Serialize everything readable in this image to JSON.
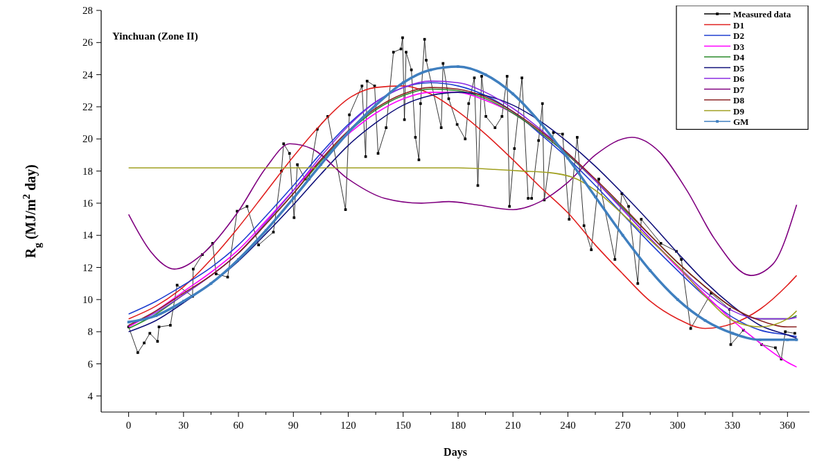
{
  "chart_data": {
    "type": "line",
    "title": "Yinchuan (Zone II)",
    "xlabel": "Days",
    "ylabel": "R$_{g}$ (MJ/m$^{2}$ day)",
    "xlim": [
      -15,
      372
    ],
    "ylim": [
      3,
      28
    ],
    "xticks": [
      0,
      {
        "value": 15,
        "label": null
      },
      30,
      {
        "value": 45,
        "label": null
      },
      60,
      {
        "value": 75,
        "label": null
      },
      90,
      {
        "value": 105,
        "label": null
      },
      120,
      {
        "value": 135,
        "label": null
      },
      150,
      {
        "value": 165,
        "label": null
      },
      180,
      {
        "value": 195,
        "label": null
      },
      210,
      {
        "value": 225,
        "label": null
      },
      240,
      {
        "value": 255,
        "label": null
      },
      270,
      {
        "value": 285,
        "label": null
      },
      300,
      {
        "value": 315,
        "label": null
      },
      330,
      {
        "value": 345,
        "label": null
      },
      360
    ],
    "yticks": [
      4,
      6,
      8,
      10,
      12,
      14,
      16,
      18,
      20,
      22,
      24,
      26,
      28
    ],
    "legend": "top right",
    "line_style": "solid",
    "series": [
      {
        "name": "Measured data",
        "color": "#000000",
        "marker": "square",
        "x": [
          0,
          5,
          8.5,
          11.6,
          15.8,
          16.6,
          22.8,
          26.5,
          34.9,
          35.3,
          40.3,
          45.9,
          47.8,
          54.1,
          59.3,
          64.7,
          71,
          79.1,
          83.5,
          84.7,
          87.9,
          90.4,
          92.2,
          96.4,
          98.5,
          103.1,
          108.8,
          118.5,
          120.6,
          127.5,
          129.5,
          130.3,
          134.4,
          136.3,
          140.7,
          144.7,
          148.8,
          149.7,
          150.7,
          151.6,
          154.5,
          156.7,
          158.6,
          159.5,
          161.7,
          162.6,
          170.8,
          171.8,
          174.9,
          179.5,
          183.9,
          185.8,
          188.9,
          190.8,
          192.9,
          195.2,
          200.2,
          204,
          206.8,
          208.1,
          210.8,
          214.9,
          218.3,
          220.2,
          224,
          226.1,
          227.1,
          232.1,
          237.1,
          240.7,
          245.1,
          248.8,
          252.8,
          256.9,
          265.7,
          269.5,
          273.2,
          278.2,
          280.1,
          290.8,
          299.3,
          302,
          307.1,
          318.3,
          328.3,
          329,
          335.9,
          345.9,
          353.4,
          356.6,
          358.8,
          364
        ],
        "values": [
          8.3,
          6.7,
          7.3,
          7.9,
          7.4,
          8.3,
          8.4,
          10.9,
          10.2,
          11.9,
          12.8,
          13.5,
          11.6,
          11.4,
          15.5,
          15.8,
          13.4,
          14.2,
          18.0,
          19.7,
          19.1,
          15.1,
          18.4,
          17.5,
          17.5,
          20.6,
          21.4,
          15.6,
          21.5,
          23.3,
          18.9,
          23.6,
          23.3,
          19.1,
          20.7,
          25.4,
          25.6,
          26.3,
          21.2,
          25.4,
          24.3,
          20.1,
          18.7,
          22.2,
          26.2,
          24.9,
          20.7,
          24.7,
          22.5,
          20.9,
          20.0,
          22.2,
          23.8,
          17.1,
          23.9,
          21.4,
          20.7,
          21.4,
          23.9,
          15.8,
          19.4,
          23.8,
          16.3,
          16.3,
          19.9,
          22.2,
          16.2,
          20.4,
          20.3,
          15.0,
          20.1,
          14.6,
          13.1,
          17.5,
          12.5,
          16.6,
          15.8,
          11.0,
          15.0,
          13.5,
          13.0,
          12.5,
          8.2,
          10.4,
          9.4,
          7.2,
          8.1,
          7.2,
          7.0,
          6.3,
          8.0,
          7.9
        ]
      },
      {
        "name": "D1",
        "color": "#e0201f",
        "x": [
          0,
          15,
          30,
          45,
          60,
          75,
          90,
          105,
          120,
          135,
          150,
          165,
          180,
          195,
          210,
          225,
          240,
          255,
          270,
          285,
          300,
          315,
          330,
          345,
          360,
          365
        ],
        "values": [
          8.8,
          9.6,
          10.8,
          12.5,
          14.5,
          16.7,
          18.9,
          20.9,
          22.5,
          23.2,
          23.3,
          22.8,
          21.7,
          20.3,
          18.7,
          17.0,
          15.4,
          13.4,
          11.6,
          9.9,
          8.8,
          8.2,
          8.5,
          9.4,
          10.9,
          11.5
        ]
      },
      {
        "name": "D2",
        "color": "#1f3fd0",
        "x": [
          0,
          15,
          30,
          45,
          60,
          75,
          90,
          105,
          120,
          135,
          150,
          165,
          180,
          195,
          210,
          225,
          240,
          255,
          270,
          285,
          300,
          315,
          330,
          345,
          360,
          365
        ],
        "values": [
          9.1,
          9.9,
          10.9,
          12.0,
          13.4,
          15.2,
          17.1,
          19.1,
          20.9,
          22.3,
          23.2,
          23.5,
          23.3,
          22.7,
          21.7,
          20.3,
          18.8,
          17.1,
          15.3,
          13.5,
          11.8,
          10.2,
          8.9,
          8.1,
          7.8,
          7.7
        ]
      },
      {
        "name": "D3",
        "color": "#ff00ff",
        "x": [
          0,
          15,
          30,
          45,
          60,
          75,
          90,
          105,
          120,
          135,
          150,
          165,
          180,
          195,
          210,
          225,
          240,
          255,
          270,
          285,
          300,
          315,
          330,
          345,
          360,
          365
        ],
        "values": [
          8.3,
          9.3,
          10.5,
          11.7,
          13.1,
          14.9,
          16.8,
          18.7,
          20.3,
          21.6,
          22.5,
          22.9,
          22.9,
          22.4,
          21.6,
          20.4,
          19.0,
          17.4,
          15.6,
          13.8,
          12.0,
          10.3,
          8.7,
          7.3,
          6.1,
          5.8
        ]
      },
      {
        "name": "D4",
        "color": "#2a8a2a",
        "x": [
          0,
          15,
          30,
          45,
          60,
          75,
          90,
          105,
          120,
          135,
          150,
          165,
          180,
          195,
          210,
          225,
          240,
          255,
          270,
          285,
          300,
          315,
          330,
          345,
          360,
          365
        ],
        "values": [
          8.2,
          9.1,
          10.3,
          11.5,
          12.9,
          14.7,
          16.6,
          18.6,
          20.4,
          21.8,
          22.7,
          23.1,
          23.0,
          22.5,
          21.6,
          20.4,
          19.0,
          17.4,
          15.7,
          14.0,
          12.3,
          10.8,
          9.5,
          8.8,
          8.8,
          9.0
        ]
      },
      {
        "name": "D5",
        "color": "#10107a",
        "x": [
          0,
          15,
          30,
          45,
          60,
          75,
          90,
          105,
          120,
          135,
          150,
          165,
          180,
          195,
          210,
          225,
          240,
          255,
          270,
          285,
          300,
          315,
          330,
          345,
          360,
          365
        ],
        "values": [
          8.0,
          8.7,
          9.8,
          11.0,
          12.4,
          14.1,
          15.9,
          17.8,
          19.6,
          21.0,
          22.1,
          22.7,
          22.9,
          22.7,
          22.1,
          21.1,
          19.8,
          18.3,
          16.6,
          14.8,
          12.9,
          11.1,
          9.6,
          8.4,
          7.8,
          7.6
        ]
      },
      {
        "name": "D6",
        "color": "#8a2be2",
        "x": [
          0,
          15,
          30,
          45,
          60,
          75,
          90,
          105,
          120,
          135,
          150,
          165,
          180,
          195,
          210,
          225,
          240,
          255,
          270,
          285,
          300,
          315,
          330,
          345,
          360,
          365
        ],
        "values": [
          8.4,
          9.2,
          10.3,
          11.5,
          12.9,
          14.8,
          16.8,
          18.9,
          20.8,
          22.3,
          23.2,
          23.6,
          23.5,
          22.9,
          21.9,
          20.6,
          19.1,
          17.4,
          15.6,
          13.8,
          12.1,
          10.5,
          9.3,
          8.8,
          8.8,
          8.9
        ]
      },
      {
        "name": "D7",
        "color": "#800080",
        "x": [
          0,
          12,
          25,
          40,
          60,
          75,
          88,
          100,
          120,
          140,
          160,
          175,
          190,
          210,
          225,
          240,
          255,
          275,
          290,
          305,
          320,
          340,
          352,
          365
        ],
        "values": [
          15.3,
          13.0,
          11.9,
          12.8,
          15.5,
          18.2,
          19.7,
          19.4,
          17.5,
          16.3,
          16.0,
          16.1,
          15.9,
          15.6,
          16.1,
          17.3,
          19.0,
          20.1,
          19.2,
          16.8,
          13.8,
          11.5,
          12.2,
          15.9
        ]
      },
      {
        "name": "D8",
        "color": "#8b2323",
        "x": [
          0,
          15,
          30,
          45,
          60,
          75,
          90,
          105,
          120,
          135,
          150,
          165,
          180,
          195,
          210,
          225,
          240,
          255,
          270,
          285,
          300,
          315,
          330,
          345,
          360,
          365
        ],
        "values": [
          8.4,
          9.3,
          10.4,
          11.5,
          12.9,
          14.7,
          16.6,
          18.7,
          20.5,
          21.9,
          22.8,
          23.2,
          23.1,
          22.6,
          21.7,
          20.5,
          19.1,
          17.5,
          15.8,
          14.0,
          12.3,
          10.8,
          9.5,
          8.7,
          8.3,
          8.3
        ]
      },
      {
        "name": "D9",
        "color": "#a0a020",
        "x": [
          0,
          30,
          60,
          90,
          120,
          150,
          180,
          200,
          215,
          230,
          245,
          255,
          270,
          285,
          300,
          315,
          330,
          345,
          360,
          365
        ],
        "values": [
          18.2,
          18.2,
          18.2,
          18.2,
          18.2,
          18.2,
          18.2,
          18.1,
          18.0,
          17.9,
          17.5,
          16.8,
          15.3,
          13.7,
          12.1,
          10.2,
          8.7,
          8.3,
          8.8,
          9.3
        ]
      },
      {
        "name": "GM",
        "color": "#3f7fbf",
        "marker": "square",
        "x": [
          0,
          15,
          30,
          45,
          60,
          75,
          90,
          105,
          120,
          135,
          150,
          165,
          180,
          195,
          210,
          225,
          240,
          255,
          270,
          285,
          300,
          315,
          330,
          345,
          360,
          365
        ],
        "values": [
          8.6,
          9.0,
          9.9,
          11.0,
          12.5,
          14.3,
          16.3,
          18.4,
          20.4,
          22.1,
          23.5,
          24.3,
          24.5,
          24.0,
          22.8,
          21.0,
          18.8,
          16.4,
          14.0,
          11.8,
          10.0,
          8.7,
          7.9,
          7.5,
          7.5,
          7.5
        ]
      }
    ]
  }
}
